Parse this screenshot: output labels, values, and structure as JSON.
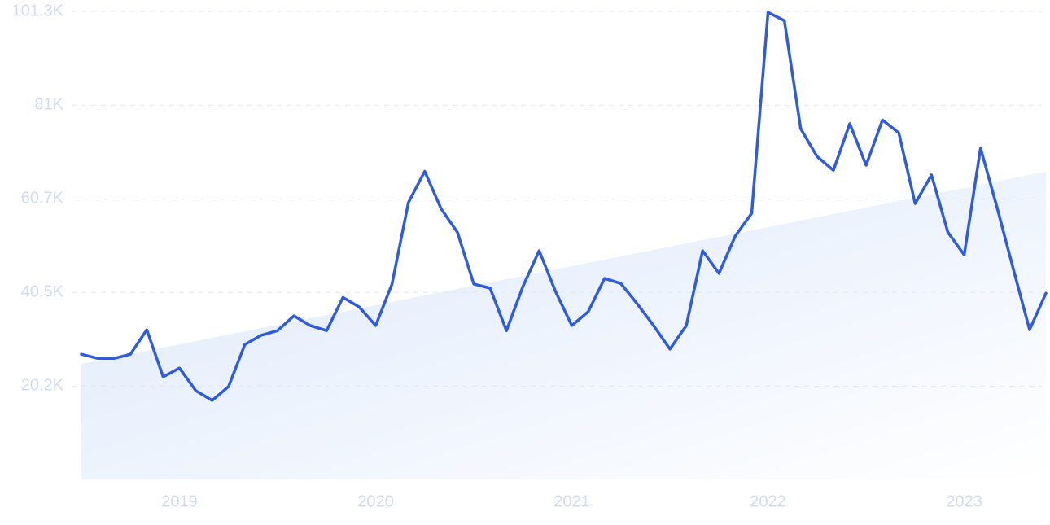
{
  "chart_data": {
    "type": "line",
    "categories": [
      null,
      null,
      null,
      null,
      null,
      null,
      "2019",
      null,
      null,
      null,
      null,
      null,
      null,
      null,
      null,
      null,
      null,
      null,
      "2020",
      null,
      null,
      null,
      null,
      null,
      null,
      null,
      null,
      null,
      null,
      null,
      "2021",
      null,
      null,
      null,
      null,
      null,
      null,
      null,
      null,
      null,
      null,
      null,
      "2022",
      null,
      null,
      null,
      null,
      null,
      null,
      null,
      null,
      null,
      null,
      null,
      "2023",
      null,
      null,
      null,
      null,
      null
    ],
    "series": [
      {
        "color": "#2f5bdf",
        "values": [
          27100,
          26200,
          26200,
          27100,
          32400,
          22200,
          24100,
          19200,
          17100,
          20100,
          29200,
          31200,
          32200,
          35400,
          33300,
          32200,
          39400,
          37300,
          33300,
          42300,
          59900,
          66700,
          58600,
          53500,
          42300,
          41400,
          32200,
          41700,
          49500,
          40700,
          33300,
          36300,
          43500,
          42400,
          38000,
          33300,
          28200,
          33300,
          49500,
          44600,
          52700,
          57600,
          101100,
          99300,
          75900,
          69900,
          66900,
          77000,
          68000,
          77800,
          75000,
          59700,
          65900,
          53500,
          48600,
          71700,
          59000,
          45600,
          32400,
          40300
        ]
      }
    ],
    "trend": [
      25000,
      66600
    ],
    "ylim": [
      0,
      101300
    ],
    "yticks": [
      {
        "value": 20200,
        "label": "20.2K"
      },
      {
        "value": 40500,
        "label": "40.5K"
      },
      {
        "value": 60700,
        "label": "60.7K"
      },
      {
        "value": 81000,
        "label": "81K"
      },
      {
        "value": 101300,
        "label": "101.3K"
      }
    ],
    "grid": true
  }
}
